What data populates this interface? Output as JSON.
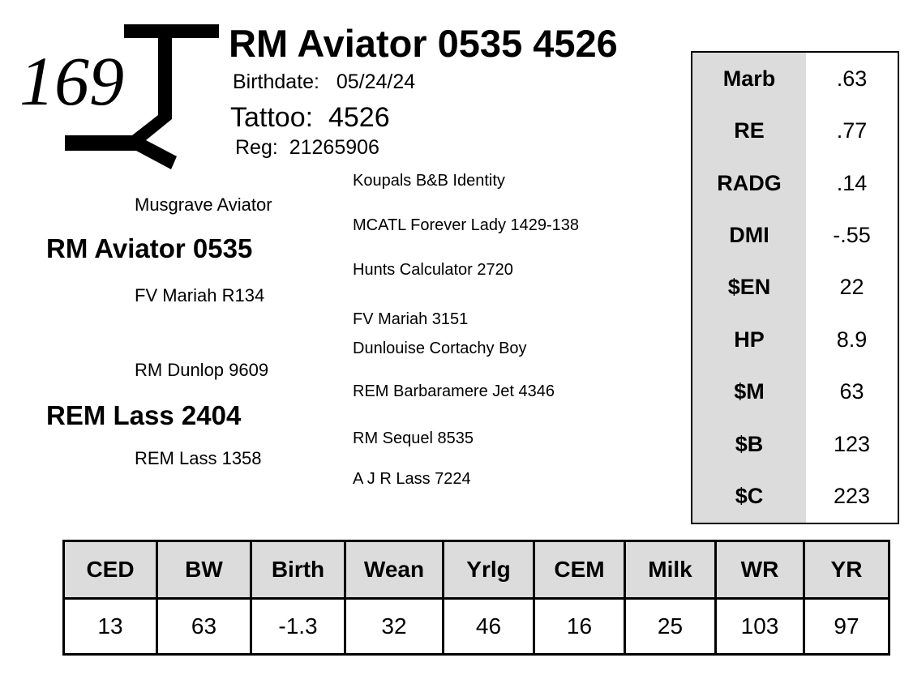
{
  "lot_number": "169",
  "brand_logo": "T-Y ranch brand",
  "animal": {
    "name": "RM Aviator 0535 4526",
    "birthdate_label": "Birthdate:",
    "birthdate": "05/24/24",
    "tattoo_label": "Tattoo:",
    "tattoo": "4526",
    "reg_label": "Reg:",
    "reg": "21265906"
  },
  "pedigree": {
    "sire": "RM Aviator 0535",
    "sire_sire": "Musgrave Aviator",
    "sire_dam": "FV Mariah R134",
    "dam": "REM Lass 2404",
    "dam_sire": "RM Dunlop 9609",
    "dam_dam": "REM Lass 1358",
    "gen3": [
      "Koupals B&B Identity",
      "MCATL Forever Lady 1429-138",
      "Hunts Calculator 2720",
      "FV Mariah 3151",
      "Dunlouise Cortachy Boy",
      "REM Barbaramere Jet 4346",
      "RM Sequel 8535",
      "A J R Lass 7224"
    ]
  },
  "side_epds": [
    {
      "label": "Marb",
      "value": ".63"
    },
    {
      "label": "RE",
      "value": ".77"
    },
    {
      "label": "RADG",
      "value": ".14"
    },
    {
      "label": "DMI",
      "value": "-.55"
    },
    {
      "label": "$EN",
      "value": "22"
    },
    {
      "label": "HP",
      "value": "8.9"
    },
    {
      "label": "$M",
      "value": "63"
    },
    {
      "label": "$B",
      "value": "123"
    },
    {
      "label": "$C",
      "value": "223"
    }
  ],
  "bottom_epds": {
    "headers": [
      "CED",
      "BW",
      "Birth",
      "Wean",
      "Yrlg",
      "CEM",
      "Milk",
      "WR",
      "YR"
    ],
    "values": [
      "13",
      "63",
      "-1.3",
      "32",
      "46",
      "16",
      "25",
      "103",
      "97"
    ]
  },
  "colors": {
    "header_gray": "#dcdcdc"
  }
}
